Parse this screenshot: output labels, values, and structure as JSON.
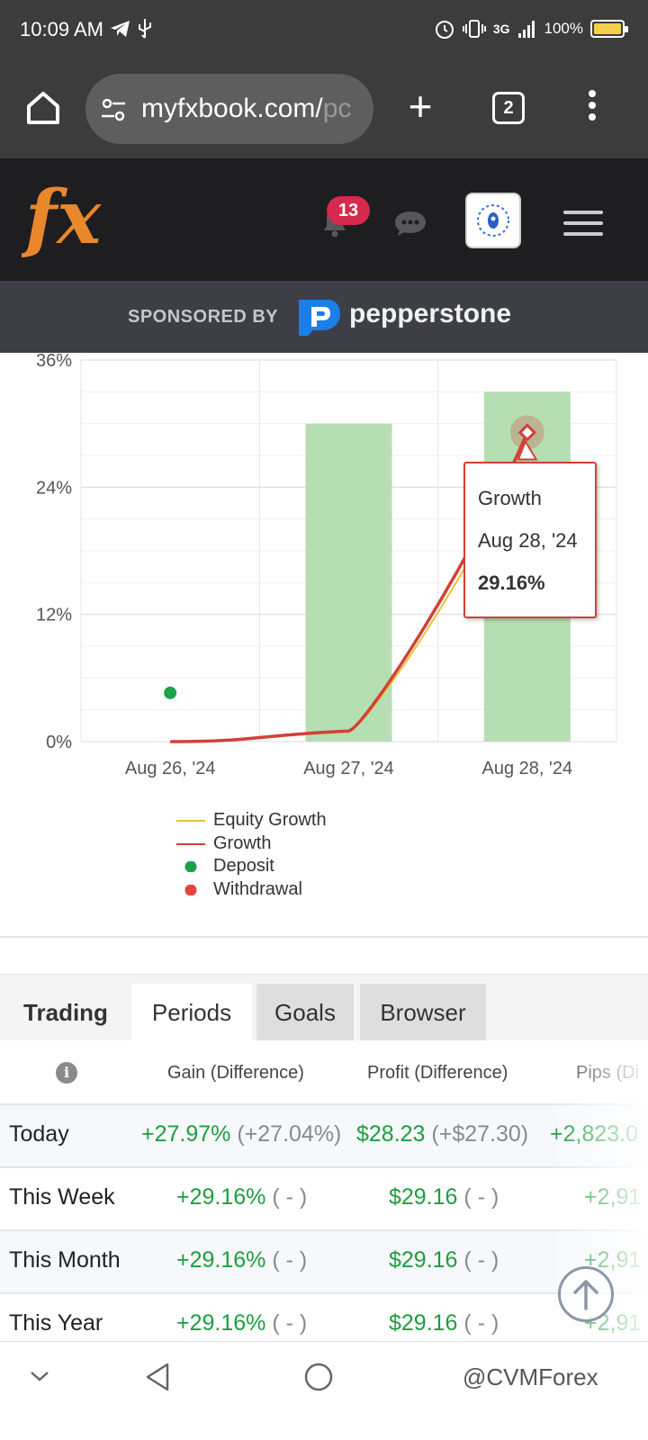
{
  "status_bar": {
    "time": "10:09 AM",
    "network": "3G",
    "battery": "100%",
    "icons_left": [
      "telegram-icon",
      "usb-icon"
    ],
    "icons_right": [
      "alarm-icon",
      "vibrate-icon",
      "signal-icon",
      "battery-icon"
    ]
  },
  "browser": {
    "url_main": "myfxbook.com/",
    "url_tail": "pc",
    "tab_count": "2"
  },
  "header": {
    "logo_text": "fx",
    "notification_count": "13"
  },
  "sponsor": {
    "label": "SPONSORED BY",
    "brand": "pepperstone"
  },
  "chart_data": {
    "type": "bar+line",
    "categories": [
      "Aug 26, '24",
      "Aug 27, '24",
      "Aug 28, '24"
    ],
    "y_ticks": [
      "36%",
      "24%",
      "12%",
      "0%"
    ],
    "ylim": [
      0,
      36
    ],
    "grid": true,
    "bars": [
      {
        "category": "Aug 27, '24",
        "value": 30.0
      },
      {
        "category": "Aug 28, '24",
        "value": 33.0
      }
    ],
    "series": [
      {
        "name": "Equity Growth",
        "color": "#e8c43a",
        "x": [
          "Aug 26, '24",
          "Aug 27, '24",
          "Aug 28, '24"
        ],
        "values": [
          0,
          0.9,
          27.97
        ]
      },
      {
        "name": "Growth",
        "color": "#d2403a",
        "x": [
          "Aug 26, '24",
          "Aug 27, '24",
          "Aug 28, '24"
        ],
        "values": [
          0,
          1.0,
          29.16
        ]
      }
    ],
    "deposits": [
      {
        "x": "Aug 26, '24",
        "value": 4.6
      }
    ],
    "withdrawals": [],
    "legend": [
      {
        "name": "Equity Growth",
        "symbol": "line",
        "color": "#e8c43a"
      },
      {
        "name": "Growth",
        "symbol": "line",
        "color": "#d2403a"
      },
      {
        "name": "Deposit",
        "symbol": "dot",
        "color": "#1aa34a"
      },
      {
        "name": "Withdrawal",
        "symbol": "dot",
        "color": "#e0463e"
      }
    ],
    "legend_placement": "bottom-left",
    "tooltip": {
      "series": "Growth",
      "date": "Aug 28, '24",
      "value": "29.16%"
    }
  },
  "tabs": [
    {
      "label": "Trading"
    },
    {
      "label": "Periods"
    },
    {
      "label": "Goals"
    },
    {
      "label": "Browser"
    }
  ],
  "table": {
    "headers": [
      "Gain (Difference)",
      "Profit (Difference)",
      "Pips (Di"
    ],
    "rows": [
      {
        "period": "Today",
        "gain": "+27.97%",
        "gain_diff": "(+27.04%)",
        "profit": "$28.23",
        "profit_diff": "(+$27.30)",
        "pips": "+2,823.0"
      },
      {
        "period": "This Week",
        "gain": "+29.16%",
        "gain_diff": "( - )",
        "profit": "$29.16",
        "profit_diff": "( - )",
        "pips": "+2,91"
      },
      {
        "period": "This Month",
        "gain": "+29.16%",
        "gain_diff": "( - )",
        "profit": "$29.16",
        "profit_diff": "( - )",
        "pips": "+2,91"
      },
      {
        "period": "This Year",
        "gain": "+29.16%",
        "gain_diff": "( - )",
        "profit": "$29.16",
        "profit_diff": "( - )",
        "pips": "+2,91"
      }
    ]
  },
  "watermark": "@CVMForex",
  "colors": {
    "header_bg": "#1e1e21",
    "sponsor_bg": "#3d3e46",
    "bar_fill": "#b5dfb3",
    "gain_green": "#1e9e3e",
    "tooltip_border": "#d2403a"
  }
}
